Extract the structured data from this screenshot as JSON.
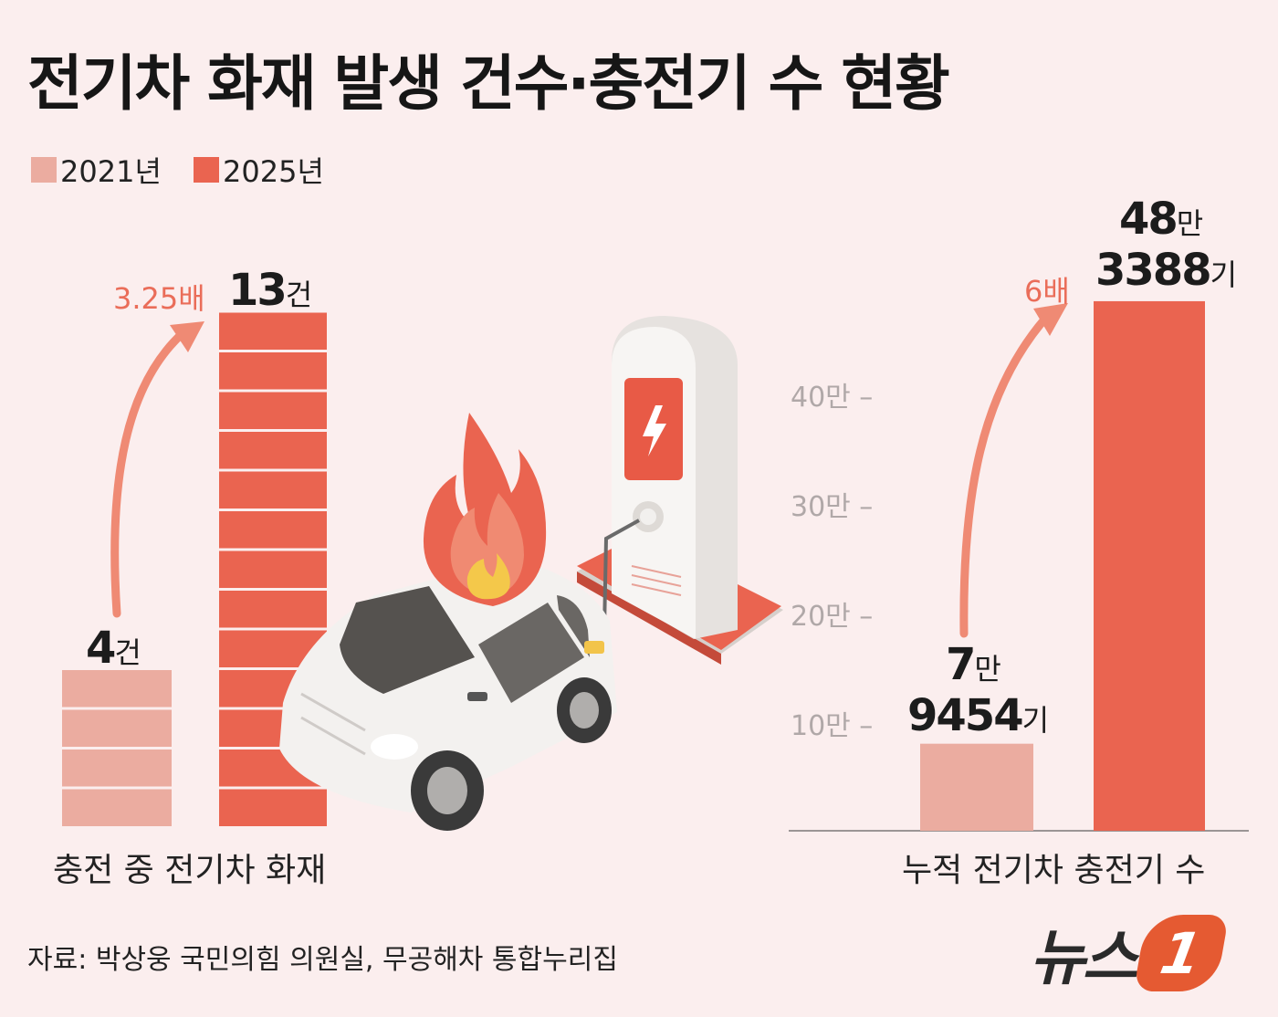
{
  "title": "전기차 화재 발생 건수·충전기 수 현황",
  "legend": [
    {
      "label": "2021년",
      "color": "#ebaca0"
    },
    {
      "label": "2025년",
      "color": "#ea6450"
    }
  ],
  "colors": {
    "light": "#ebaca0",
    "dark": "#ea6450",
    "arrow": "#ef8a74",
    "background": "#fbeeee"
  },
  "chart_data": [
    {
      "type": "bar",
      "categories": [
        "2021년",
        "2025년"
      ],
      "values": [
        4,
        13
      ],
      "unit": "건",
      "value_labels": [
        {
          "number": "4",
          "unit": "건"
        },
        {
          "number": "13",
          "unit": "건"
        }
      ],
      "multiplier": "3.25배",
      "xlabel": "충전 중 전기차 화재"
    },
    {
      "type": "bar",
      "categories": [
        "2021년",
        "2025년"
      ],
      "values": [
        79454,
        483388
      ],
      "unit": "기",
      "value_labels": [
        {
          "line1_number": "7",
          "line1_unit": "만",
          "line2_number": "9454",
          "line2_unit": "기"
        },
        {
          "line1_number": "48",
          "line1_unit": "만",
          "line2_number": "3388",
          "line2_unit": "기"
        }
      ],
      "multiplier": "6배",
      "xlabel": "누적 전기차 충전기 수",
      "yticks": [
        {
          "value": 100000,
          "label": "10만 –"
        },
        {
          "value": 200000,
          "label": "20만 –"
        },
        {
          "value": 300000,
          "label": "30만 –"
        },
        {
          "value": 400000,
          "label": "40만 –"
        }
      ]
    }
  ],
  "source": "자료: 박상웅 국민의힘 의원실, 무공해차 통합누리집",
  "brand": {
    "name": "뉴스",
    "mark": "1"
  }
}
